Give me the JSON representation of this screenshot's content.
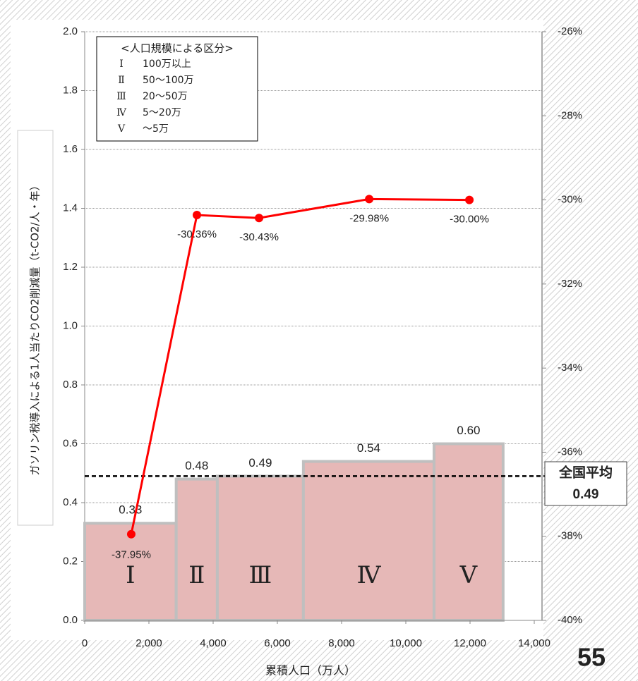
{
  "chart_data": {
    "type": "histogram",
    "bins": [
      0,
      2850,
      4130,
      6810,
      10880,
      13030
    ],
    "values": [
      0.33,
      0.48,
      0.49,
      0.54,
      0.6
    ],
    "value_labels": [
      "0.33",
      "0.48",
      "0.49",
      "0.54",
      "0.60"
    ],
    "categories": [
      "Ⅰ",
      "Ⅱ",
      "Ⅲ",
      "Ⅳ",
      "Ⅴ"
    ],
    "color": "#e6b8b7",
    "edge_color": "#bfbfbf",
    "xlim": [
      0,
      14000
    ],
    "xticks": [
      0,
      {
        "value": 2000,
        "label": "2,000"
      },
      {
        "value": 4000,
        "label": "4,000"
      },
      {
        "value": 6000,
        "label": "6,000"
      },
      {
        "value": 8000,
        "label": "8,000"
      },
      {
        "value": 10000,
        "label": "10,000"
      },
      {
        "value": 12000,
        "label": "12,000"
      },
      {
        "value": 14000,
        "label": "14,000"
      }
    ],
    "ylim": [
      0,
      2
    ],
    "yticks": [
      {
        "value": 0,
        "label": "0.0"
      },
      0.2,
      0.4,
      0.6,
      0.8,
      {
        "value": 1,
        "label": "1.0"
      },
      1.2,
      1.4,
      1.6,
      1.8,
      {
        "value": 2,
        "label": "2.0"
      }
    ],
    "y2lim": [
      -40,
      -26
    ],
    "y2ticks": [
      {
        "value": -26,
        "label": "-26%"
      },
      {
        "value": -28,
        "label": "-28%"
      },
      {
        "value": -30,
        "label": "-30%"
      },
      {
        "value": -32,
        "label": "-32%"
      },
      {
        "value": -34,
        "label": "-34%"
      },
      {
        "value": -36,
        "label": "-36%"
      },
      {
        "value": -38,
        "label": "-38%"
      },
      {
        "value": -40,
        "label": "-40%"
      }
    ],
    "grid": true,
    "xlabel": "累積人口（万人）",
    "ylabel": "ガソリン税導入による1人当たりCO2削減量（t-CO2/人・年）",
    "line": {
      "axis": "y2",
      "color": "#ff0000",
      "x": [
        1450,
        3495,
        5430,
        8860,
        11980
      ],
      "values": [
        -37.95,
        -30.36,
        -30.43,
        -29.98,
        -30.0
      ],
      "value_labels": [
        "-37.95%",
        "-30.36%",
        "-30.43%",
        "-29.98%",
        "-30.00%"
      ]
    },
    "reference_line": {
      "value": 0.49,
      "label": "全国平均",
      "value_label": "0.49"
    },
    "legend": {
      "title": "<人口規模による区分>",
      "rows": [
        [
          "Ⅰ",
          "100万以上"
        ],
        [
          "Ⅱ",
          "50～100万"
        ],
        [
          "Ⅲ",
          "20～50万"
        ],
        [
          "Ⅳ",
          "5～20万"
        ],
        [
          "Ⅴ",
          "～5万"
        ]
      ]
    },
    "page_number": "55"
  }
}
